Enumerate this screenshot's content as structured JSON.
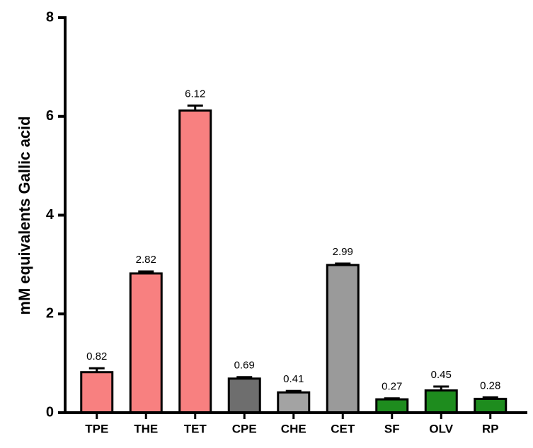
{
  "chart_data": {
    "type": "bar",
    "y_label": "mM equivalents Gallic acid",
    "categories": [
      "TPE",
      "THE",
      "TET",
      "CPE",
      "CHE",
      "CET",
      "SF",
      "OLV",
      "RP"
    ],
    "values": [
      0.82,
      2.82,
      6.12,
      0.69,
      0.41,
      2.99,
      0.27,
      0.45,
      0.28
    ],
    "errors": [
      0.08,
      0.04,
      0.1,
      0.03,
      0.03,
      0.03,
      0.02,
      0.08,
      0.03
    ],
    "colors": [
      "#f88080",
      "#f88080",
      "#f88080",
      "#6e6e6e",
      "#a3a3a3",
      "#9a9a9a",
      "#1e8c1e",
      "#1e8c1e",
      "#1e8c1e"
    ],
    "ylim": [
      0,
      8
    ],
    "yticks": [
      0,
      2,
      4,
      6,
      8
    ]
  }
}
